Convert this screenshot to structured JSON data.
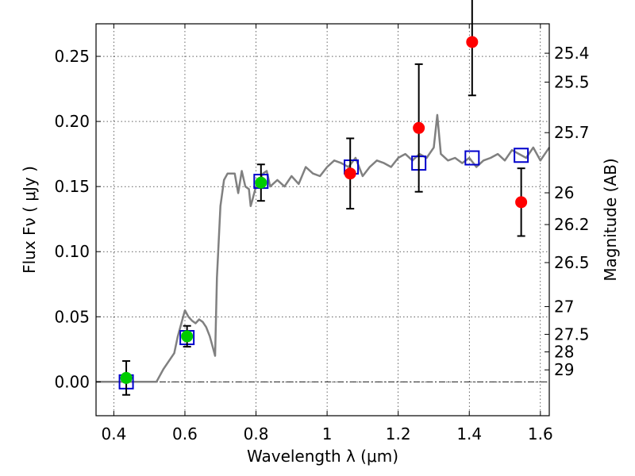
{
  "chart_data": {
    "type": "scatter",
    "xlabel": "Wavelength  λ (μm)",
    "ylabel": "Flux  Fν  ( μJy )",
    "y2label": "Magnitude (AB)",
    "xlim": [
      0.35,
      1.625
    ],
    "ylim": [
      -0.026,
      0.275
    ],
    "grid": true,
    "x_ticks": [
      0.4,
      0.6,
      0.8,
      1.0,
      1.2,
      1.4,
      1.6
    ],
    "x_tick_labels": [
      "0.4",
      "0.6",
      "0.8",
      "1",
      "1.2",
      "1.4",
      "1.6"
    ],
    "y_ticks": [
      0.0,
      0.05,
      0.1,
      0.15,
      0.2,
      0.25
    ],
    "y_tick_labels": [
      "0.00",
      "0.05",
      "0.10",
      "0.15",
      "0.20",
      "0.25"
    ],
    "y2_ticks": [
      {
        "label": "25.4",
        "flux": 0.2524
      },
      {
        "label": "25.5",
        "flux": 0.2302
      },
      {
        "label": "25.7",
        "flux": 0.1914
      },
      {
        "label": "26",
        "flux": 0.1452
      },
      {
        "label": "26.2",
        "flux": 0.1208
      },
      {
        "label": "26.5",
        "flux": 0.0916
      },
      {
        "label": "27",
        "flux": 0.0578
      },
      {
        "label": "27.5",
        "flux": 0.0365
      },
      {
        "label": "28",
        "flux": 0.023
      },
      {
        "label": "29",
        "flux": 0.0092
      }
    ],
    "series": [
      {
        "type": "line",
        "color": "#808080",
        "x": [
          0.35,
          0.52,
          0.54,
          0.56,
          0.57,
          0.58,
          0.59,
          0.6,
          0.61,
          0.62,
          0.63,
          0.64,
          0.65,
          0.66,
          0.67,
          0.68,
          0.685,
          0.69,
          0.7,
          0.71,
          0.72,
          0.74,
          0.75,
          0.76,
          0.77,
          0.78,
          0.785,
          0.79,
          0.8,
          0.82,
          0.83,
          0.84,
          0.86,
          0.88,
          0.9,
          0.92,
          0.94,
          0.96,
          0.98,
          1.0,
          1.02,
          1.04,
          1.06,
          1.08,
          1.1,
          1.12,
          1.14,
          1.16,
          1.18,
          1.2,
          1.22,
          1.24,
          1.26,
          1.28,
          1.3,
          1.31,
          1.32,
          1.34,
          1.36,
          1.38,
          1.4,
          1.42,
          1.44,
          1.46,
          1.48,
          1.5,
          1.52,
          1.54,
          1.56,
          1.58,
          1.6,
          1.625
        ],
        "y": [
          0.0,
          0.0,
          0.01,
          0.018,
          0.022,
          0.035,
          0.045,
          0.055,
          0.05,
          0.047,
          0.045,
          0.048,
          0.046,
          0.042,
          0.035,
          0.025,
          0.02,
          0.08,
          0.135,
          0.155,
          0.16,
          0.16,
          0.145,
          0.162,
          0.15,
          0.148,
          0.135,
          0.14,
          0.15,
          0.16,
          0.162,
          0.15,
          0.155,
          0.15,
          0.158,
          0.152,
          0.165,
          0.16,
          0.158,
          0.165,
          0.17,
          0.168,
          0.165,
          0.172,
          0.158,
          0.165,
          0.17,
          0.168,
          0.165,
          0.172,
          0.175,
          0.17,
          0.175,
          0.172,
          0.18,
          0.205,
          0.175,
          0.17,
          0.172,
          0.168,
          0.172,
          0.165,
          0.17,
          0.172,
          0.175,
          0.17,
          0.178,
          0.175,
          0.172,
          0.18,
          0.17,
          0.18
        ]
      },
      {
        "type": "marker",
        "marker": "square",
        "color": "#0000cc",
        "x": [
          0.435,
          0.606,
          0.814,
          1.068,
          1.258,
          1.408,
          1.546
        ],
        "y": [
          0.0,
          0.034,
          0.154,
          0.165,
          0.168,
          0.172,
          0.174
        ]
      },
      {
        "type": "marker",
        "marker": "circle",
        "color": "#00cc00",
        "x": [
          0.435,
          0.606,
          0.814
        ],
        "y": [
          0.003,
          0.035,
          0.153
        ],
        "yerr": [
          0.013,
          0.008,
          0.014
        ]
      },
      {
        "type": "marker",
        "marker": "circle",
        "color": "#ff0000",
        "x": [
          1.065,
          1.258,
          1.408,
          1.546
        ],
        "y": [
          0.16,
          0.195,
          0.261,
          0.138
        ],
        "yerr": [
          0.027,
          0.049,
          0.041,
          0.026
        ]
      }
    ]
  }
}
